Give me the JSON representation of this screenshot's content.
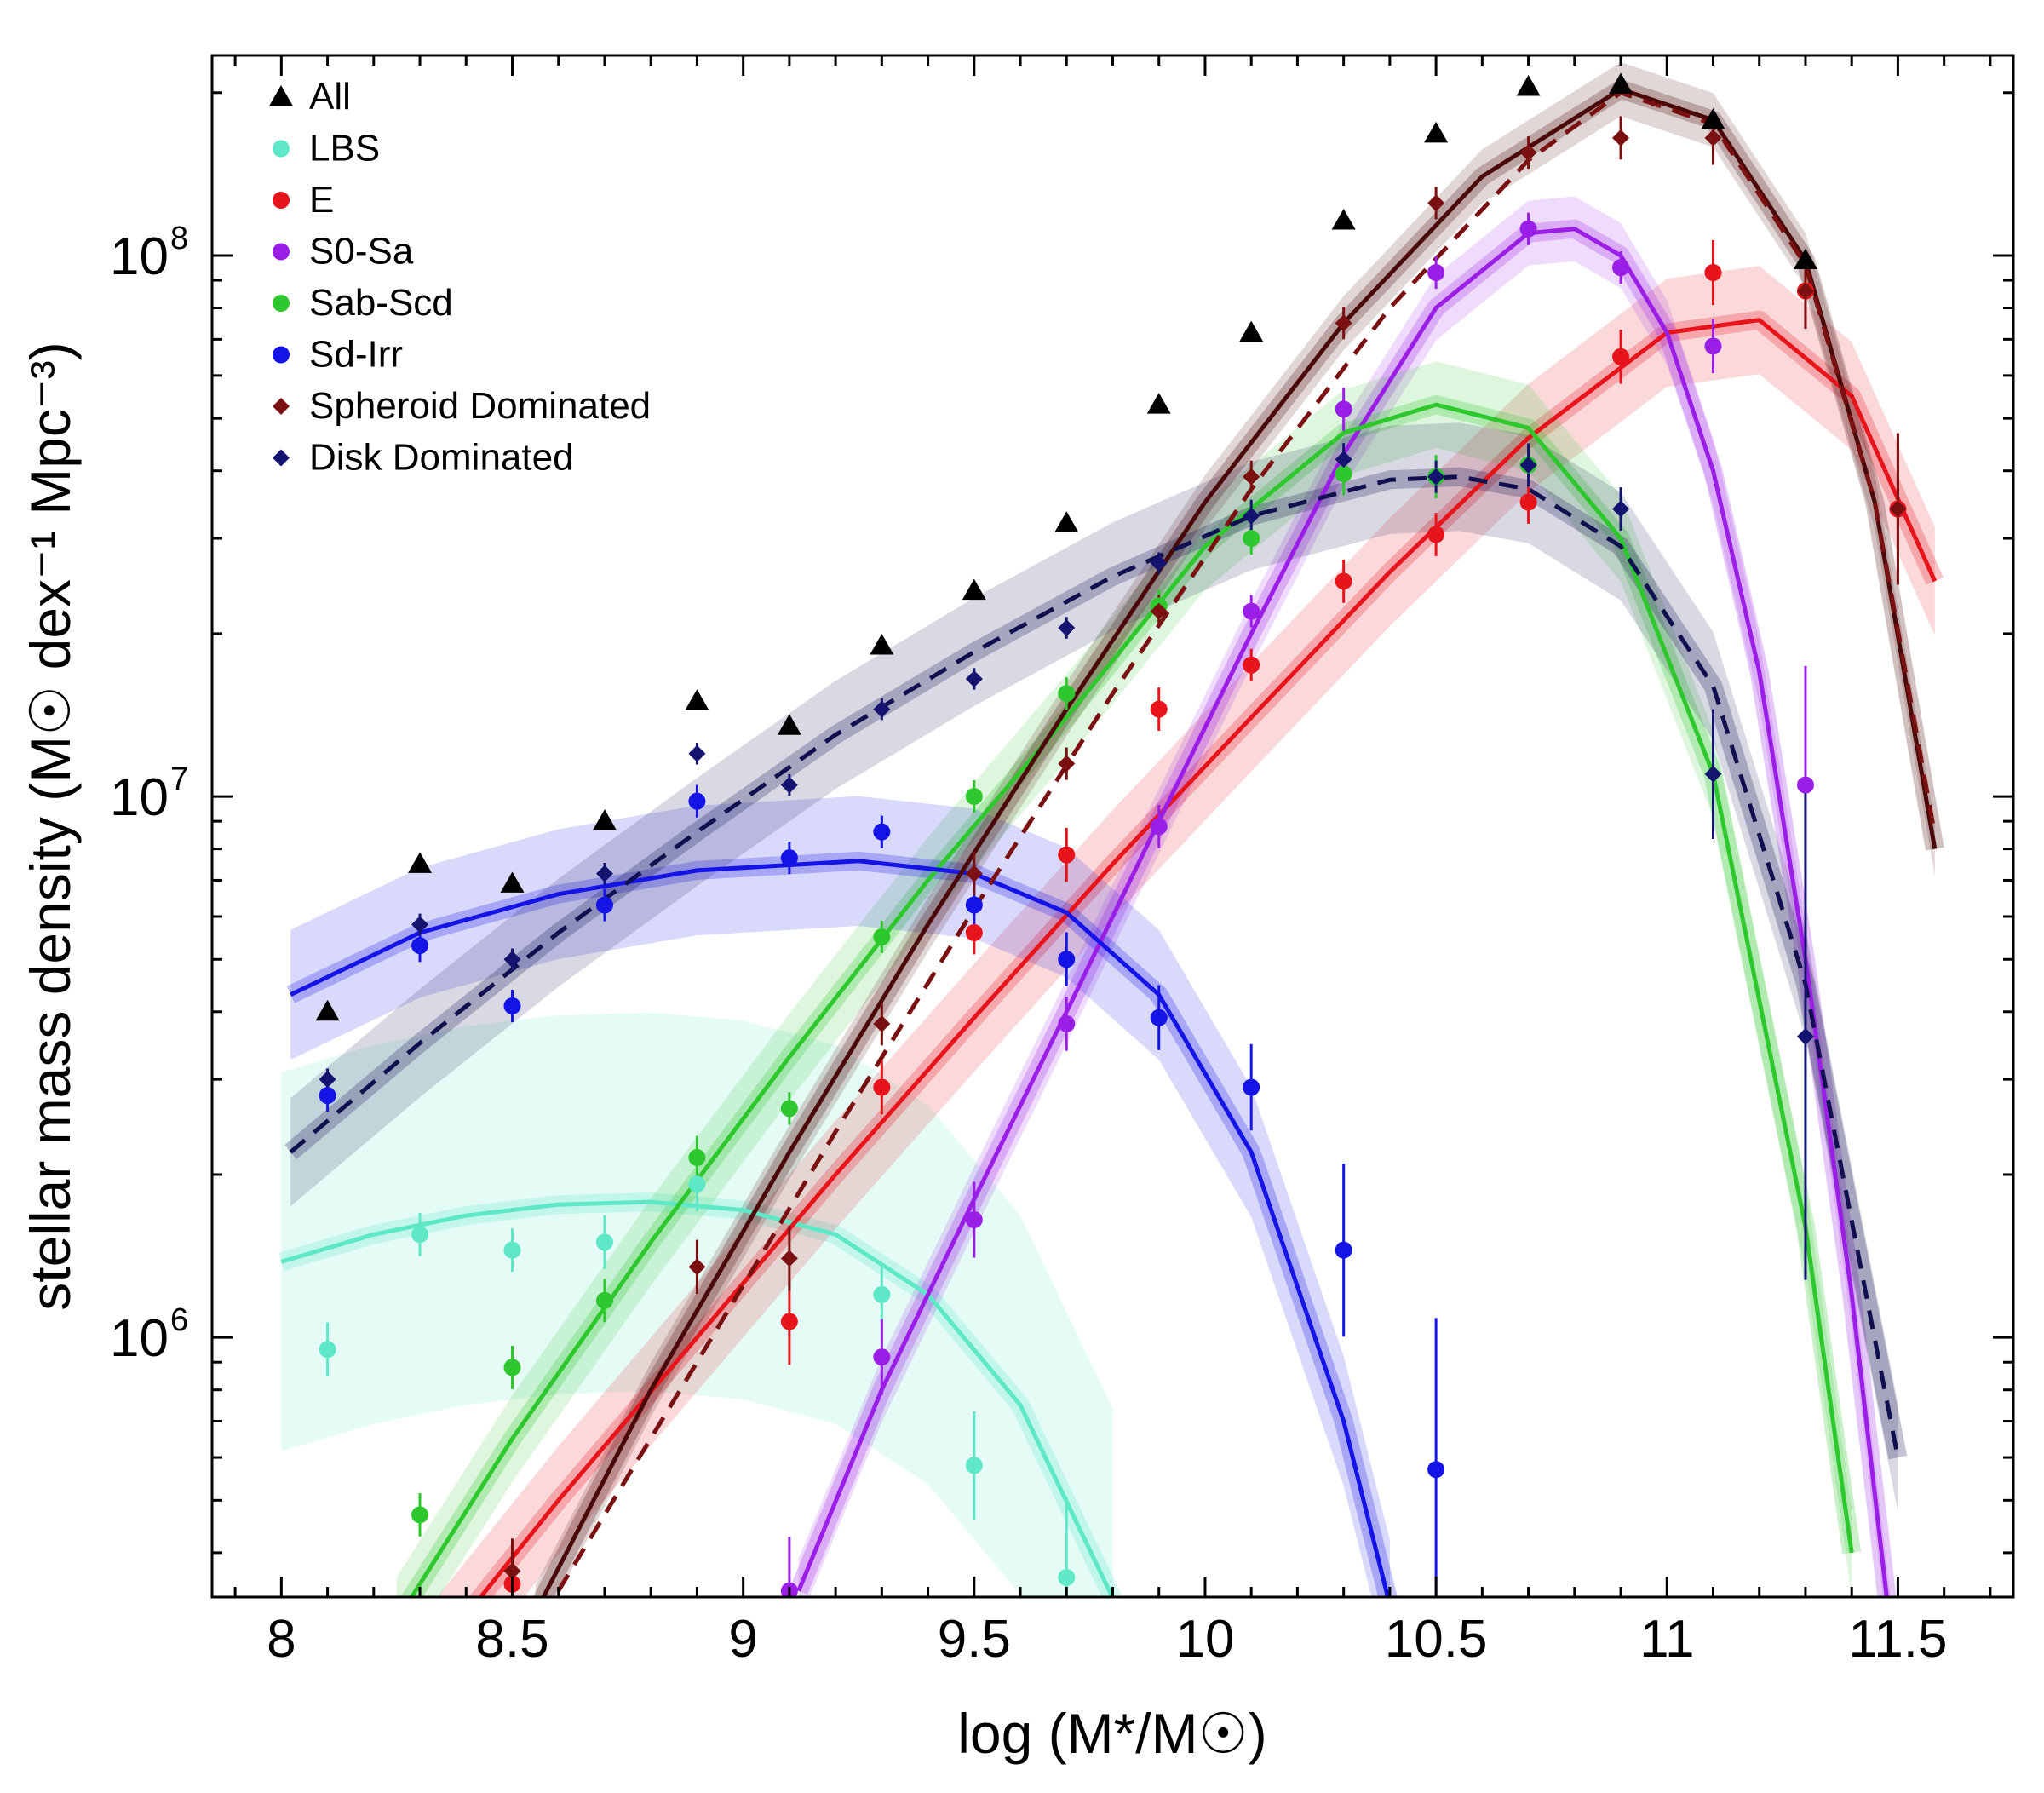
{
  "chart_data": {
    "type": "scatter",
    "xlabel": "log (M*/M☉)",
    "ylabel": "stellar mass density (M☉ dex⁻¹ Mpc⁻³)",
    "xlim": [
      7.85,
      11.75
    ],
    "ylim_log10": [
      5.52,
      8.37
    ],
    "yscale": "log",
    "x_ticks": [
      8,
      8.5,
      9,
      9.5,
      10,
      10.5,
      11,
      11.5
    ],
    "x_tick_labels": [
      "8",
      "8.5",
      "9",
      "9.5",
      "10",
      "10.5",
      "11",
      "11.5"
    ],
    "y_major_ticks_log10": [
      6,
      7,
      8
    ],
    "y_tick_labels": [
      {
        "base": "10",
        "exp": "6"
      },
      {
        "base": "10",
        "exp": "7"
      },
      {
        "base": "10",
        "exp": "8"
      }
    ],
    "legend_position": "top-left",
    "series": [
      {
        "name": "All",
        "color": "#000000",
        "marker": "triangle",
        "x": [
          8.1,
          8.3,
          8.5,
          8.7,
          8.9,
          9.1,
          9.3,
          9.5,
          9.7,
          9.9,
          10.1,
          10.3,
          10.5,
          10.7,
          10.9,
          11.1,
          11.3
        ],
        "y": [
          4000000.0,
          7500000.0,
          6900000.0,
          9000000.0,
          15000000.0,
          13500000.0,
          19000000.0,
          24000000.0,
          32000000.0,
          53000000.0,
          72000000.0,
          116000000.0,
          168000000.0,
          205000000.0,
          207000000.0,
          178000000.0,
          98000000.0
        ],
        "err": []
      },
      {
        "name": "LBS",
        "color": "#5ee8c8",
        "marker": "circle",
        "x": [
          8.1,
          8.3,
          8.5,
          8.7,
          8.9,
          9.3,
          9.5,
          9.7
        ],
        "y": [
          950000.0,
          1550000.0,
          1450000.0,
          1500000.0,
          1920000.0,
          1200000.0,
          580000.0,
          360000.0
        ],
        "err": [
          0.05,
          0.04,
          0.04,
          0.05,
          0.05,
          0.05,
          0.1,
          0.15
        ]
      },
      {
        "name": "E",
        "color": "#e8141c",
        "marker": "circle",
        "x": [
          8.5,
          9.1,
          9.3,
          9.5,
          9.7,
          9.9,
          10.1,
          10.3,
          10.5,
          10.7,
          10.9,
          11.1,
          11.3,
          11.5
        ],
        "y": [
          350000.0,
          1070000.0,
          2900000.0,
          5600000.0,
          7800000.0,
          14500000.0,
          17500000.0,
          25000000.0,
          30500000.0,
          35000000.0,
          65000000.0,
          93000000.0,
          86000000.0,
          34000000.0
        ],
        "err": [
          0.08,
          0.08,
          0.05,
          0.04,
          0.05,
          0.04,
          0.03,
          0.04,
          0.04,
          0.04,
          0.05,
          0.06,
          0.07,
          0.14
        ]
      },
      {
        "name": "S0-Sa",
        "color": "#9a1ee6",
        "marker": "circle",
        "x": [
          9.1,
          9.3,
          9.5,
          9.7,
          9.9,
          10.1,
          10.3,
          10.5,
          10.7,
          10.9,
          11.1,
          11.3
        ],
        "y": [
          340000.0,
          920000.0,
          1650000.0,
          3800000.0,
          8800000.0,
          22000000.0,
          52000000.0,
          93000000.0,
          112000000.0,
          95000000.0,
          68000000.0,
          10500000.0
        ],
        "err": [
          0.1,
          0.07,
          0.07,
          0.05,
          0.04,
          0.03,
          0.04,
          0.03,
          0.03,
          0.03,
          0.05,
          0.22
        ]
      },
      {
        "name": "Sab-Scd",
        "color": "#2ec82e",
        "marker": "circle",
        "x": [
          8.3,
          8.5,
          8.7,
          8.9,
          9.1,
          9.3,
          9.5,
          9.7,
          9.9,
          10.1,
          10.3,
          10.5,
          10.7
        ],
        "y": [
          470000.0,
          880000.0,
          1170000.0,
          2150000.0,
          2650000.0,
          5500000.0,
          10000000.0,
          15500000.0,
          22500000.0,
          30000000.0,
          39500000.0,
          39000000.0,
          41000000.0
        ],
        "err": [
          0.04,
          0.04,
          0.04,
          0.04,
          0.03,
          0.03,
          0.03,
          0.03,
          0.03,
          0.03,
          0.04,
          0.04,
          0.04
        ]
      },
      {
        "name": "Sd-Irr",
        "color": "#1414e6",
        "marker": "circle",
        "x": [
          8.1,
          8.3,
          8.5,
          8.7,
          8.9,
          9.1,
          9.3,
          9.5,
          9.7,
          9.9,
          10.1,
          10.3,
          10.5
        ],
        "y": [
          2800000.0,
          5300000.0,
          4100000.0,
          6300000.0,
          9800000.0,
          7700000.0,
          8600000.0,
          6300000.0,
          5000000.0,
          3900000.0,
          2900000.0,
          1450000.0,
          570000.0
        ],
        "err": [
          0.03,
          0.03,
          0.03,
          0.03,
          0.03,
          0.03,
          0.03,
          0.04,
          0.05,
          0.06,
          0.08,
          0.16,
          0.28
        ]
      },
      {
        "name": "Spheroid Dominated",
        "color": "#7a1010",
        "marker": "diamond",
        "x": [
          8.5,
          8.9,
          9.1,
          9.3,
          9.5,
          9.7,
          9.9,
          10.1,
          10.3,
          10.5,
          10.7,
          10.9,
          11.1,
          11.3,
          11.5
        ],
        "y": [
          370000.0,
          1350000.0,
          1400000.0,
          3800000.0,
          7200000.0,
          11500000.0,
          22000000.0,
          39000000.0,
          75000000.0,
          125000000.0,
          155000000.0,
          165000000.0,
          165000000.0,
          86000000.0,
          34000000.0
        ],
        "err": [
          0.06,
          0.05,
          0.06,
          0.04,
          0.04,
          0.03,
          0.03,
          0.03,
          0.03,
          0.03,
          0.03,
          0.04,
          0.05,
          0.07,
          0.14
        ]
      },
      {
        "name": "Disk Dominated",
        "color": "#141470",
        "marker": "diamond",
        "x": [
          8.1,
          8.3,
          8.5,
          8.7,
          8.9,
          9.1,
          9.3,
          9.5,
          9.7,
          9.9,
          10.1,
          10.3,
          10.5,
          10.7,
          10.9,
          11.1,
          11.3
        ],
        "y": [
          3000000.0,
          5800000.0,
          5000000.0,
          7200000.0,
          12000000.0,
          10500000.0,
          14500000.0,
          16500000.0,
          20500000.0,
          27000000.0,
          33000000.0,
          42000000.0,
          39000000.0,
          41000000.0,
          34000000.0,
          11000000.0,
          3600000.0
        ],
        "err": [
          0.02,
          0.02,
          0.02,
          0.02,
          0.02,
          0.02,
          0.02,
          0.02,
          0.02,
          0.02,
          0.03,
          0.03,
          0.03,
          0.04,
          0.04,
          0.12,
          0.45
        ]
      }
    ],
    "fits": [
      {
        "series": "LBS",
        "color": "#5ee8c8",
        "dashed": false,
        "band_width": 0.35,
        "x": [
          8.0,
          8.2,
          8.4,
          8.6,
          8.8,
          9.0,
          9.2,
          9.4,
          9.6,
          9.8
        ],
        "y": [
          1380000.0,
          1550000.0,
          1680000.0,
          1760000.0,
          1780000.0,
          1720000.0,
          1550000.0,
          1200000.0,
          750000.0,
          330000.0
        ]
      },
      {
        "series": "E",
        "color": "#e8141c",
        "dashed": false,
        "band_width": 0.1,
        "x": [
          8.3,
          8.6,
          8.9,
          9.2,
          9.5,
          9.8,
          10.1,
          10.4,
          10.7,
          11.0,
          11.2,
          11.4,
          11.58
        ],
        "y": [
          240000.0,
          500000.0,
          1000000.0,
          2000000.0,
          3900000.0,
          7500000.0,
          14000000.0,
          26000000.0,
          46000000.0,
          72000000.0,
          76000000.0,
          55000000.0,
          25000000.0
        ]
      },
      {
        "series": "S0-Sa",
        "color": "#9a1ee6",
        "dashed": false,
        "band_width": 0.06,
        "x": [
          9.12,
          9.3,
          9.5,
          9.7,
          9.9,
          10.1,
          10.3,
          10.5,
          10.7,
          10.8,
          10.9,
          11.0,
          11.1,
          11.2,
          11.3,
          11.4,
          11.5
        ],
        "y": [
          340000.0,
          800000.0,
          1800000.0,
          4000000.0,
          9000000.0,
          20000000.0,
          43000000.0,
          80000000.0,
          110000000.0,
          112000000.0,
          100000000.0,
          72000000.0,
          40000000.0,
          17000000.0,
          5000000.0,
          1200000.0,
          220000.0
        ]
      },
      {
        "series": "Sab-Scd",
        "color": "#2ec82e",
        "dashed": false,
        "band_width": 0.08,
        "x": [
          8.25,
          8.5,
          8.8,
          9.1,
          9.4,
          9.7,
          10.0,
          10.3,
          10.5,
          10.7,
          10.9,
          11.1,
          11.3,
          11.4
        ],
        "y": [
          300000.0,
          650000.0,
          1500000.0,
          3300000.0,
          7000000.0,
          14000000.0,
          29000000.0,
          47000000.0,
          53000000.0,
          48000000.0,
          30000000.0,
          11000000.0,
          1600000.0,
          400000.0
        ]
      },
      {
        "series": "Sd-Irr",
        "color": "#1414e6",
        "dashed": false,
        "band_width": 0.12,
        "x": [
          8.02,
          8.3,
          8.6,
          8.9,
          9.25,
          9.5,
          9.7,
          9.9,
          10.1,
          10.3,
          10.4
        ],
        "y": [
          4300000.0,
          5600000.0,
          6600000.0,
          7300000.0,
          7600000.0,
          7200000.0,
          6100000.0,
          4300000.0,
          2200000.0,
          700000.0,
          320000.0
        ]
      },
      {
        "series": "Spheroid Dominated",
        "color": "#4a0808",
        "dashed": false,
        "band_width": 0.05,
        "x": [
          8.55,
          8.8,
          9.1,
          9.4,
          9.7,
          10.0,
          10.3,
          10.6,
          10.9,
          11.1,
          11.3,
          11.45,
          11.58
        ],
        "y": [
          310000.0,
          800000.0,
          2200000.0,
          5800000.0,
          14500000.0,
          35000000.0,
          75000000.0,
          140000000.0,
          203000000.0,
          178000000.0,
          98000000.0,
          35000000.0,
          8000000.0
        ]
      },
      {
        "series": "Spheroid Dominated (dashed fit)",
        "color": "#7a1010",
        "dashed": true,
        "band_width": 0,
        "x": [
          8.6,
          8.9,
          9.2,
          9.5,
          9.8,
          10.1,
          10.4,
          10.7,
          10.9,
          11.1,
          11.3,
          11.45,
          11.58
        ],
        "y": [
          340000.0,
          900000.0,
          2400000.0,
          6200000.0,
          15500000.0,
          37000000.0,
          80000000.0,
          150000000.0,
          200000000.0,
          175000000.0,
          96000000.0,
          35000000.0,
          8500000.0
        ]
      },
      {
        "series": "Disk Dominated",
        "color": "#101050",
        "dashed": true,
        "band_width": 0.1,
        "x": [
          8.02,
          8.3,
          8.6,
          8.9,
          9.2,
          9.5,
          9.8,
          10.1,
          10.4,
          10.55,
          10.7,
          10.9,
          11.1,
          11.3,
          11.5
        ],
        "y": [
          2200000.0,
          3500000.0,
          5600000.0,
          8600000.0,
          13000000.0,
          18500000.0,
          25500000.0,
          33000000.0,
          38500000.0,
          39000000.0,
          37000000.0,
          29000000.0,
          16000000.0,
          4500000.0,
          600000.0
        ]
      }
    ]
  }
}
